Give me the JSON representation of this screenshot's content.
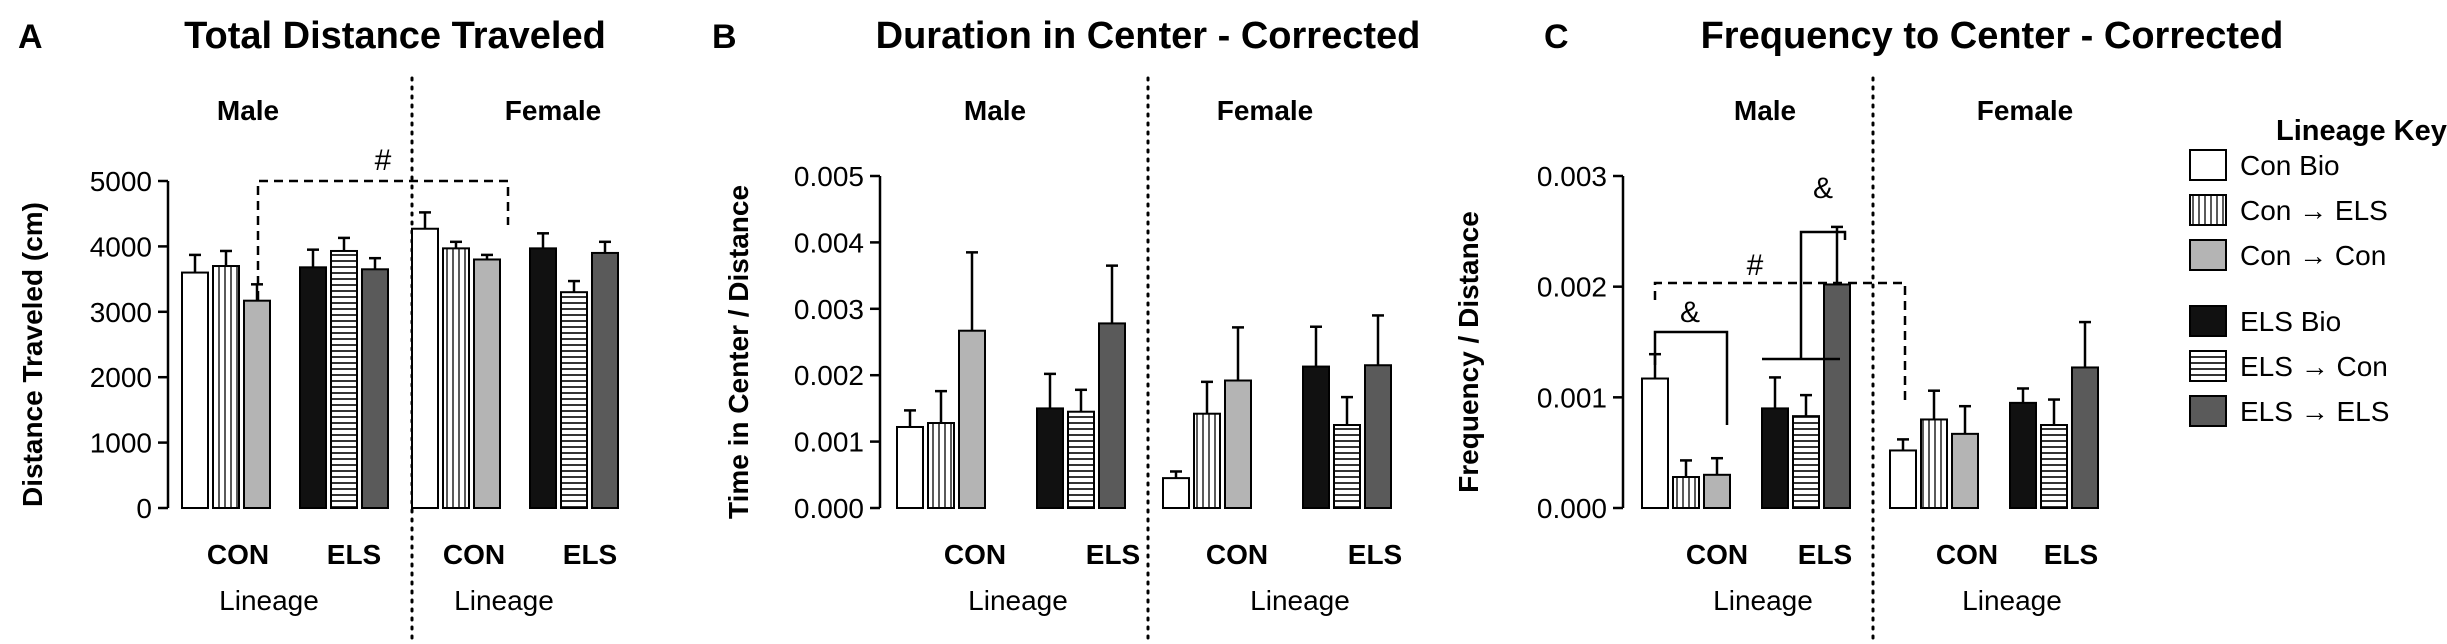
{
  "chart_data": [
    {
      "type": "bar",
      "panel": "A",
      "title": "Total Distance Traveled",
      "ylabel": "Distance Traveled (cm)",
      "xlabel": "Lineage",
      "ylim": [
        0,
        5000
      ],
      "yticks": [
        "0",
        "1000",
        "2000",
        "3000",
        "4000",
        "5000"
      ],
      "sexes": [
        "Male",
        "Female"
      ],
      "groups": [
        "CON",
        "ELS"
      ],
      "series": [
        {
          "name": "Con Bio",
          "values": [
            3600,
            4270
          ],
          "errors": [
            270,
            250
          ]
        },
        {
          "name": "Con → ELS",
          "values": [
            3700,
            3970
          ],
          "errors": [
            230,
            100
          ]
        },
        {
          "name": "Con → Con",
          "values": [
            3170,
            3800
          ],
          "errors": [
            250,
            70
          ]
        },
        {
          "name": "ELS Bio",
          "values": [
            3680,
            3970
          ],
          "errors": [
            270,
            230
          ]
        },
        {
          "name": "ELS → Con",
          "values": [
            3930,
            3300
          ],
          "errors": [
            200,
            170
          ]
        },
        {
          "name": "ELS → ELS",
          "values": [
            3650,
            3900
          ],
          "errors": [
            170,
            170
          ]
        }
      ],
      "annotations": [
        {
          "label": "#"
        }
      ]
    },
    {
      "type": "bar",
      "panel": "B",
      "title": "Duration in Center - Corrected",
      "ylabel": "Time in Center / Distance",
      "xlabel": "Lineage",
      "ylim": [
        0,
        0.005
      ],
      "yticks": [
        "0.000",
        "0.001",
        "0.002",
        "0.003",
        "0.004",
        "0.005"
      ],
      "sexes": [
        "Male",
        "Female"
      ],
      "groups": [
        "CON",
        "ELS"
      ],
      "series": [
        {
          "name": "Con Bio",
          "values": [
            0.00122,
            0.00045
          ],
          "errors": [
            0.00025,
            0.0001
          ]
        },
        {
          "name": "Con → ELS",
          "values": [
            0.00128,
            0.00142
          ],
          "errors": [
            0.00048,
            0.00048
          ]
        },
        {
          "name": "Con → Con",
          "values": [
            0.00267,
            0.00192
          ],
          "errors": [
            0.00118,
            0.0008
          ]
        },
        {
          "name": "ELS Bio",
          "values": [
            0.0015,
            0.00213
          ],
          "errors": [
            0.00052,
            0.0006
          ]
        },
        {
          "name": "ELS → Con",
          "values": [
            0.00145,
            0.00125
          ],
          "errors": [
            0.00033,
            0.00042
          ]
        },
        {
          "name": "ELS → ELS",
          "values": [
            0.00278,
            0.00215
          ],
          "errors": [
            0.00087,
            0.00075
          ]
        }
      ]
    },
    {
      "type": "bar",
      "panel": "C",
      "title": "Frequency to Center - Corrected",
      "ylabel": "Frequency / Distance",
      "xlabel": "Lineage",
      "ylim": [
        0,
        0.003
      ],
      "yticks": [
        "0.000",
        "0.001",
        "0.002",
        "0.003"
      ],
      "sexes": [
        "Male",
        "Female"
      ],
      "groups": [
        "CON",
        "ELS"
      ],
      "series": [
        {
          "name": "Con Bio",
          "values": [
            0.00117,
            0.00052
          ],
          "errors": [
            0.00022,
            0.0001
          ]
        },
        {
          "name": "Con → ELS",
          "values": [
            0.00028,
            0.0008
          ],
          "errors": [
            0.00015,
            0.00026
          ]
        },
        {
          "name": "Con → Con",
          "values": [
            0.0003,
            0.00067
          ],
          "errors": [
            0.00015,
            0.00025
          ]
        },
        {
          "name": "ELS Bio",
          "values": [
            0.0009,
            0.00095
          ],
          "errors": [
            0.00028,
            0.00013
          ]
        },
        {
          "name": "ELS → Con",
          "values": [
            0.00083,
            0.00075
          ],
          "errors": [
            0.00019,
            0.00023
          ]
        },
        {
          "name": "ELS → ELS",
          "values": [
            0.00202,
            0.00127
          ],
          "errors": [
            0.00052,
            0.00041
          ]
        }
      ],
      "annotations": [
        {
          "label": "&"
        },
        {
          "label": "&"
        },
        {
          "label": "#"
        }
      ]
    }
  ],
  "legend": {
    "title": "Lineage Key:",
    "items": [
      {
        "label": "Con Bio",
        "style": "white"
      },
      {
        "label": "Con → ELS",
        "style": "vstripe"
      },
      {
        "label": "Con → Con",
        "style": "lightgray"
      },
      {
        "label": "ELS Bio",
        "style": "black"
      },
      {
        "label": "ELS → Con",
        "style": "hstripe"
      },
      {
        "label": "ELS → ELS",
        "style": "darkgray"
      }
    ]
  },
  "colors": {
    "white": "#ffffff",
    "lightgray": "#b4b4b4",
    "black": "#111111",
    "darkgray": "#5a5a5a",
    "stroke": "#000000"
  }
}
